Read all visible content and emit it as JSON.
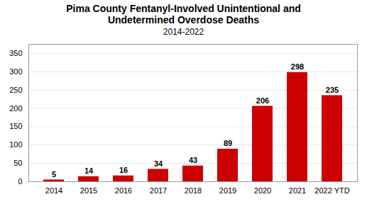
{
  "chart_data": {
    "type": "bar",
    "title": "Pima County Fentanyl-Involved Unintentional and\nUndetermined Overdose Deaths",
    "subtitle": "2014-2022",
    "categories": [
      "2014",
      "2015",
      "2016",
      "2017",
      "2018",
      "2019",
      "2020",
      "2021",
      "2022 YTD"
    ],
    "values": [
      5,
      14,
      16,
      34,
      43,
      89,
      206,
      298,
      235
    ],
    "color": "#cc0000",
    "ylim": [
      0,
      375
    ],
    "yticks": [
      0,
      50,
      100,
      150,
      200,
      250,
      300,
      350
    ],
    "grid": true,
    "data_labels": true
  }
}
